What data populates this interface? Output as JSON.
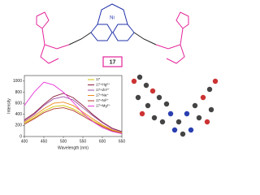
{
  "compound_label": "17",
  "metal_label": "Ni",
  "chart_data": {
    "type": "line",
    "xlabel": "Wavelength (nm)",
    "ylabel": "Intensity",
    "x": [
      400,
      425,
      450,
      475,
      500,
      525,
      550,
      575,
      600,
      625,
      650
    ],
    "series": [
      {
        "name": "17",
        "color": "#d4c200",
        "values": [
          240,
          340,
          460,
          540,
          560,
          500,
          400,
          290,
          190,
          110,
          60
        ]
      },
      {
        "name": "17+Hg²⁺",
        "color": "#8b1a3a",
        "values": [
          300,
          420,
          580,
          720,
          780,
          700,
          560,
          400,
          260,
          150,
          90
        ]
      },
      {
        "name": "17+Zn²⁺",
        "color": "#9a4fa0",
        "values": [
          280,
          400,
          560,
          680,
          720,
          660,
          520,
          380,
          250,
          140,
          80
        ]
      },
      {
        "name": "17+Na⁺",
        "color": "#f08a1c",
        "values": [
          260,
          370,
          500,
          600,
          620,
          560,
          440,
          320,
          210,
          120,
          70
        ]
      },
      {
        "name": "17+Ni²⁺",
        "color": "#b33a2a",
        "values": [
          220,
          320,
          430,
          500,
          520,
          470,
          370,
          270,
          180,
          100,
          55
        ]
      },
      {
        "name": "17+Mg²⁺",
        "color": "#e83ad8",
        "values": [
          560,
          800,
          980,
          930,
          800,
          620,
          420,
          270,
          160,
          90,
          50
        ]
      }
    ],
    "xlim": [
      400,
      650
    ],
    "xticks": [
      400,
      450,
      500,
      550,
      600,
      650
    ],
    "ylim": [
      0,
      1100
    ],
    "yticks": [
      0,
      200,
      400,
      600,
      800,
      1000
    ]
  }
}
